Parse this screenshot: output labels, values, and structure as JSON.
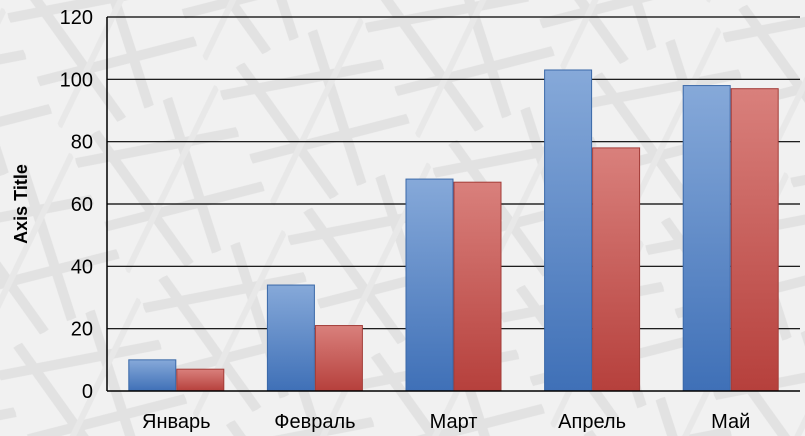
{
  "chart_data": {
    "type": "bar",
    "title": "",
    "xlabel": "",
    "ylabel": "Axis Title",
    "categories": [
      "Январь",
      "Февраль",
      "Март",
      "Апрель",
      "Май"
    ],
    "series": [
      {
        "values": [
          10,
          34,
          68,
          103,
          98
        ],
        "color": "#4f81bd"
      },
      {
        "values": [
          7,
          21,
          67,
          78,
          97
        ],
        "color": "#c0504d"
      }
    ],
    "ylim": [
      0,
      120
    ],
    "yticks": [
      0,
      20,
      40,
      60,
      80,
      100,
      120
    ],
    "grid": true,
    "legend": "none"
  }
}
